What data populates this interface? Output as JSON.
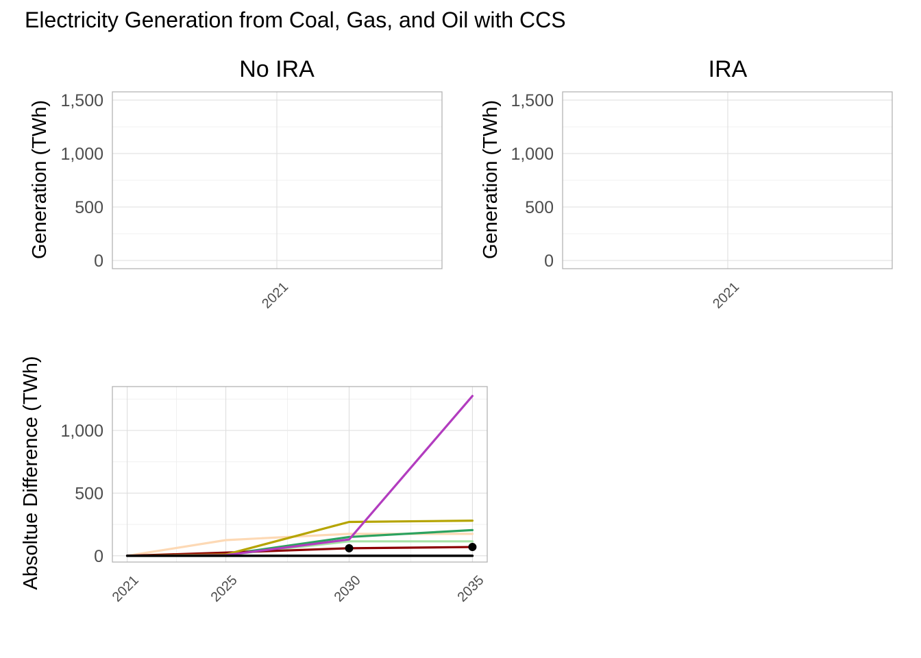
{
  "figure": {
    "title": "Electricity Generation from Coal, Gas, and Oil with CCS"
  },
  "chart_data": [
    {
      "type": "line",
      "panel": "No IRA",
      "ylabel": "Generation (TWh)",
      "x_ticks": [
        "2021"
      ],
      "y_ticks": [
        "0",
        "500",
        "1,000",
        "1,500"
      ],
      "ylim": [
        0,
        1500
      ],
      "series": []
    },
    {
      "type": "line",
      "panel": "IRA",
      "ylabel": "Generation (TWh)",
      "x_ticks": [
        "2021"
      ],
      "y_ticks": [
        "0",
        "500",
        "1,000",
        "1,500"
      ],
      "ylim": [
        0,
        1500
      ],
      "series": []
    },
    {
      "type": "line",
      "ylabel": "Absoltue Difference (TWh)",
      "x": [
        2021,
        2025,
        2030,
        2035
      ],
      "x_ticks": [
        "2021",
        "2025",
        "2030",
        "2035"
      ],
      "y_ticks": [
        "0",
        "500",
        "1,000"
      ],
      "xlim": [
        2020.4,
        2035.6
      ],
      "ylim": [
        -50,
        1350
      ],
      "series": [
        {
          "color": "#fdd9b5",
          "values": [
            0,
            125,
            175,
            175
          ],
          "markers": false
        },
        {
          "color": "#a6e3a6",
          "values": [
            0,
            5,
            115,
            115
          ],
          "markers": false
        },
        {
          "color": "#2ca25f",
          "values": [
            0,
            10,
            150,
            205
          ],
          "markers": false
        },
        {
          "color": "#8b0000",
          "values": [
            0,
            25,
            60,
            70
          ],
          "markers": false
        },
        {
          "color": "#b5a400",
          "values": [
            0,
            10,
            270,
            280
          ],
          "markers": false
        },
        {
          "color": "#b23cbf",
          "values": [
            0,
            5,
            130,
            1275
          ],
          "markers": false
        },
        {
          "color": "#000000",
          "values": [
            0,
            0,
            0,
            0
          ],
          "markers": false
        },
        {
          "color": "#000000",
          "values": [
            null,
            null,
            60,
            70
          ],
          "markers": true
        }
      ]
    }
  ]
}
